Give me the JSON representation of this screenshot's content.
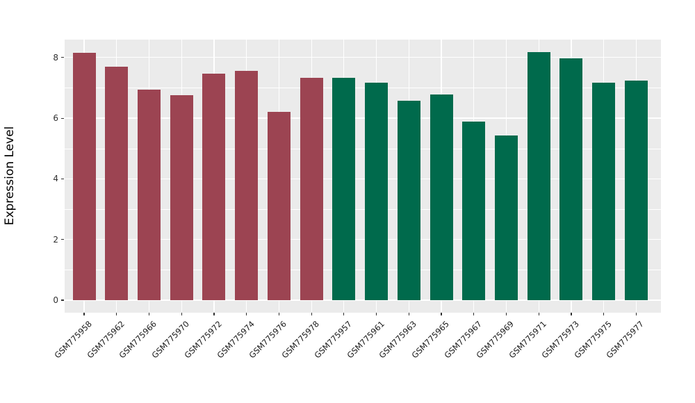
{
  "chart_data": {
    "type": "bar",
    "title": "",
    "xlabel": "",
    "ylabel": "Expression Level",
    "ylim": [
      0,
      8.6
    ],
    "yticks": [
      "0",
      "2",
      "4",
      "6",
      "8"
    ],
    "ytick_values": [
      0,
      2,
      4,
      6,
      8
    ],
    "yminor_values": [
      1,
      3,
      5,
      7
    ],
    "grid": true,
    "legend_position": "none",
    "x_label_rotation_deg": 45,
    "palette": {
      "group1_color": "#9C4452",
      "group2_color": "#006A4C",
      "panel_background": "#EBEBEB",
      "gridline_color": "#FFFFFF",
      "tick_text_color": "#303030"
    },
    "bars": [
      {
        "label": "GSM775958",
        "value": 8.15,
        "group": "group1",
        "color": "#9C4452"
      },
      {
        "label": "GSM775962",
        "value": 7.7,
        "group": "group1",
        "color": "#9C4452"
      },
      {
        "label": "GSM775966",
        "value": 6.95,
        "group": "group1",
        "color": "#9C4452"
      },
      {
        "label": "GSM775970",
        "value": 6.76,
        "group": "group1",
        "color": "#9C4452"
      },
      {
        "label": "GSM775972",
        "value": 7.47,
        "group": "group1",
        "color": "#9C4452"
      },
      {
        "label": "GSM775974",
        "value": 7.55,
        "group": "group1",
        "color": "#9C4452"
      },
      {
        "label": "GSM775976",
        "value": 6.2,
        "group": "group1",
        "color": "#9C4452"
      },
      {
        "label": "GSM775978",
        "value": 7.33,
        "group": "group1",
        "color": "#9C4452"
      },
      {
        "label": "GSM775957",
        "value": 7.33,
        "group": "group2",
        "color": "#006A4C"
      },
      {
        "label": "GSM775961",
        "value": 7.16,
        "group": "group2",
        "color": "#006A4C"
      },
      {
        "label": "GSM775963",
        "value": 6.58,
        "group": "group2",
        "color": "#006A4C"
      },
      {
        "label": "GSM775965",
        "value": 6.77,
        "group": "group2",
        "color": "#006A4C"
      },
      {
        "label": "GSM775967",
        "value": 5.89,
        "group": "group2",
        "color": "#006A4C"
      },
      {
        "label": "GSM775969",
        "value": 5.43,
        "group": "group2",
        "color": "#006A4C"
      },
      {
        "label": "GSM775971",
        "value": 8.17,
        "group": "group2",
        "color": "#006A4C"
      },
      {
        "label": "GSM775973",
        "value": 7.98,
        "group": "group2",
        "color": "#006A4C"
      },
      {
        "label": "GSM775975",
        "value": 7.18,
        "group": "group2",
        "color": "#006A4C"
      },
      {
        "label": "GSM775977",
        "value": 7.23,
        "group": "group2",
        "color": "#006A4C"
      }
    ]
  }
}
